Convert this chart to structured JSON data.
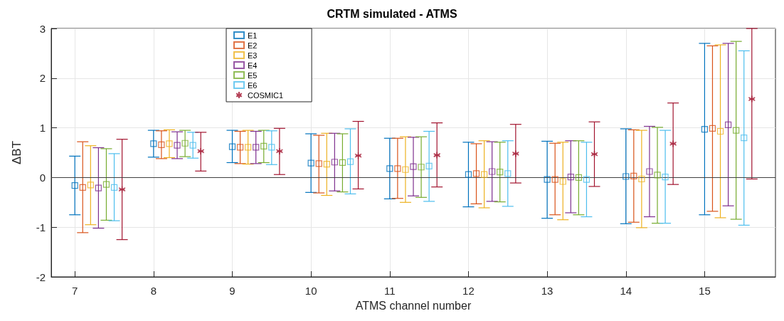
{
  "chart_data": {
    "type": "scatter",
    "title": "CRTM simulated - ATMS",
    "xlabel": "ATMS channel number",
    "ylabel": "ΔBT",
    "xlim": [
      6.7,
      15.9
    ],
    "xticks": [
      7,
      8,
      9,
      10,
      11,
      12,
      13,
      14,
      15
    ],
    "ylim": [
      -2,
      3
    ],
    "yticks": [
      -2,
      -1,
      0,
      1,
      2,
      3
    ],
    "grid": true,
    "legend": "top left",
    "ref_lines": [
      {
        "axis": "y",
        "value": 0,
        "color": "#404040"
      }
    ],
    "series": [
      {
        "name": "E1",
        "color": "#0072bd",
        "marker": "square",
        "x": [
          7,
          8,
          9,
          10,
          11,
          12,
          13,
          14,
          15
        ],
        "values": [
          -0.16,
          0.68,
          0.62,
          0.29,
          0.18,
          0.06,
          -0.04,
          0.02,
          0.97
        ],
        "errors": [
          [
            -0.75,
            0.43
          ],
          [
            0.41,
            0.95
          ],
          [
            0.3,
            0.95
          ],
          [
            -0.3,
            0.88
          ],
          [
            -0.43,
            0.79
          ],
          [
            -0.59,
            0.71
          ],
          [
            -0.82,
            0.73
          ],
          [
            -0.93,
            0.98
          ],
          [
            -0.75,
            2.7
          ]
        ]
      },
      {
        "name": "E2",
        "color": "#d95319",
        "marker": "square",
        "x": [
          7.1,
          8.1,
          9.1,
          10.1,
          11.1,
          12.1,
          13.1,
          14.1,
          15.1
        ],
        "values": [
          -0.2,
          0.66,
          0.61,
          0.28,
          0.18,
          0.08,
          -0.04,
          0.03,
          0.99
        ],
        "errors": [
          [
            -1.11,
            0.72
          ],
          [
            0.38,
            0.94
          ],
          [
            0.28,
            0.93
          ],
          [
            -0.31,
            0.85
          ],
          [
            -0.42,
            0.79
          ],
          [
            -0.53,
            0.68
          ],
          [
            -0.75,
            0.69
          ],
          [
            -0.9,
            0.96
          ],
          [
            -0.68,
            2.65
          ]
        ]
      },
      {
        "name": "E3",
        "color": "#edb120",
        "marker": "square",
        "x": [
          7.2,
          8.2,
          9.2,
          10.2,
          11.2,
          12.2,
          13.2,
          14.2,
          15.2
        ],
        "values": [
          -0.15,
          0.68,
          0.61,
          0.27,
          0.16,
          0.06,
          -0.08,
          -0.03,
          0.93
        ],
        "errors": [
          [
            -0.95,
            0.64
          ],
          [
            0.4,
            0.96
          ],
          [
            0.27,
            0.95
          ],
          [
            -0.36,
            0.89
          ],
          [
            -0.5,
            0.82
          ],
          [
            -0.61,
            0.74
          ],
          [
            -0.85,
            0.71
          ],
          [
            -1.01,
            0.95
          ],
          [
            -0.81,
            2.67
          ]
        ]
      },
      {
        "name": "E4",
        "color": "#7e2f8e",
        "marker": "square",
        "x": [
          7.3,
          8.3,
          9.3,
          10.3,
          11.3,
          12.3,
          13.3,
          14.3,
          15.3
        ],
        "values": [
          -0.21,
          0.65,
          0.61,
          0.31,
          0.22,
          0.12,
          0.01,
          0.12,
          1.06
        ],
        "errors": [
          [
            -1.02,
            0.6
          ],
          [
            0.38,
            0.92
          ],
          [
            0.28,
            0.93
          ],
          [
            -0.27,
            0.89
          ],
          [
            -0.37,
            0.81
          ],
          [
            -0.48,
            0.72
          ],
          [
            -0.71,
            0.74
          ],
          [
            -0.79,
            1.03
          ],
          [
            -0.57,
            2.7
          ]
        ]
      },
      {
        "name": "E5",
        "color": "#77ac30",
        "marker": "square",
        "x": [
          7.4,
          8.4,
          9.4,
          10.4,
          11.4,
          12.4,
          13.4,
          14.4,
          15.4
        ],
        "values": [
          -0.14,
          0.69,
          0.63,
          0.3,
          0.21,
          0.11,
          0.0,
          0.05,
          0.95
        ],
        "errors": [
          [
            -0.86,
            0.58
          ],
          [
            0.42,
            0.95
          ],
          [
            0.3,
            0.95
          ],
          [
            -0.29,
            0.88
          ],
          [
            -0.4,
            0.82
          ],
          [
            -0.49,
            0.71
          ],
          [
            -0.75,
            0.74
          ],
          [
            -0.92,
            1.01
          ],
          [
            -0.84,
            2.74
          ]
        ]
      },
      {
        "name": "E6",
        "color": "#4dbeee",
        "marker": "square",
        "x": [
          7.5,
          8.5,
          9.5,
          10.5,
          11.5,
          12.5,
          13.5,
          14.5,
          15.5
        ],
        "values": [
          -0.2,
          0.65,
          0.61,
          0.32,
          0.23,
          0.08,
          -0.04,
          0.01,
          0.8
        ],
        "errors": [
          [
            -0.87,
            0.48
          ],
          [
            0.39,
            0.91
          ],
          [
            0.26,
            0.94
          ],
          [
            -0.33,
            0.98
          ],
          [
            -0.48,
            0.93
          ],
          [
            -0.58,
            0.74
          ],
          [
            -0.79,
            0.71
          ],
          [
            -0.92,
            0.95
          ],
          [
            -0.96,
            2.55
          ]
        ]
      },
      {
        "name": "COSMIC1",
        "color": "#a2142f",
        "marker": "cross",
        "x": [
          7.6,
          8.6,
          9.6,
          10.6,
          11.6,
          12.6,
          13.6,
          14.6,
          15.6
        ],
        "values": [
          -0.24,
          0.53,
          0.53,
          0.44,
          0.45,
          0.48,
          0.47,
          0.68,
          1.58
        ],
        "errors": [
          [
            -1.25,
            0.77
          ],
          [
            0.13,
            0.91
          ],
          [
            0.06,
            0.99
          ],
          [
            -0.23,
            1.13
          ],
          [
            -0.19,
            1.1
          ],
          [
            -0.11,
            1.07
          ],
          [
            -0.18,
            1.12
          ],
          [
            -0.14,
            1.5
          ],
          [
            -0.03,
            3.0
          ]
        ]
      }
    ]
  }
}
